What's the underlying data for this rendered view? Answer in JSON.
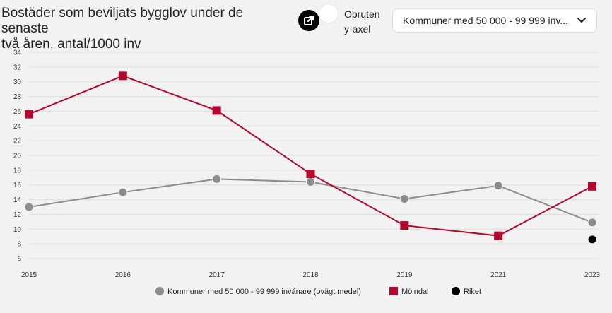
{
  "header": {
    "title_line1": "Bostäder som beviljats bygglov under de senaste",
    "title_line2": "två åren, antal/1000 inv",
    "toggle_label_line1": "Obruten",
    "toggle_label_line2": "y-axel",
    "select_value": "Kommuner med 50 000 - 99 999 inv..."
  },
  "icons": {
    "export": "external-link-icon",
    "dropdown": "chevron-down-icon"
  },
  "chart_data": {
    "type": "line",
    "x": [
      "2015",
      "2016",
      "2017",
      "2018",
      "2019",
      "2021",
      "2023"
    ],
    "yticks": [
      "6",
      "8",
      "10",
      "12",
      "14",
      "16",
      "18",
      "20",
      "22",
      "24",
      "26",
      "28",
      "30",
      "32",
      "34"
    ],
    "ylim": [
      6,
      34
    ],
    "grid": true,
    "legend_placement": "bottom",
    "series": [
      {
        "name": "Kommuner med 50 000 - 99 999 invånare (ovägt medel)",
        "color": "#8c8c8c",
        "marker": "circle",
        "values": [
          13.0,
          15.0,
          16.8,
          16.4,
          14.1,
          15.9,
          10.9
        ]
      },
      {
        "name": "Mölndal",
        "color": "#b5072c",
        "marker": "square",
        "values": [
          25.6,
          30.8,
          26.1,
          17.5,
          10.5,
          9.1,
          15.8
        ]
      },
      {
        "name": "Riket",
        "color": "#000000",
        "marker": "circle",
        "values": [
          null,
          null,
          null,
          null,
          null,
          null,
          8.6
        ]
      }
    ]
  }
}
